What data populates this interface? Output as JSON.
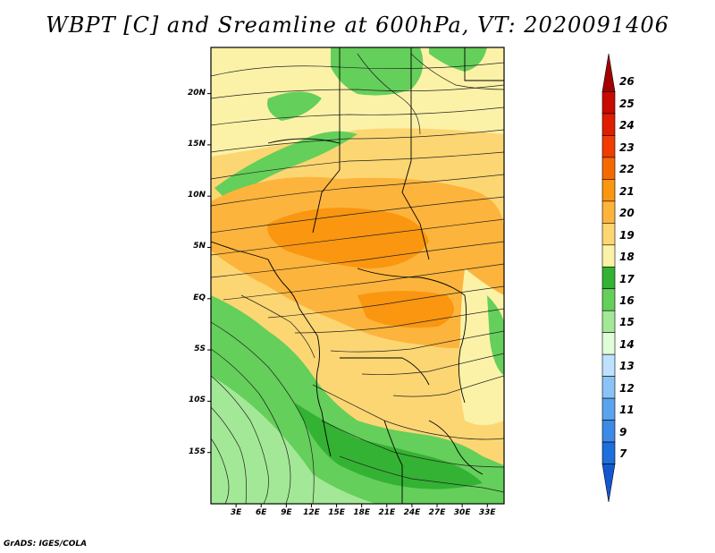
{
  "title": "WBPT [C] and Sreamline at 600hPa, VT: 2020091406",
  "credit": "GrADS: IGES/COLA",
  "lat_labels": [
    "20N",
    "15N",
    "10N",
    "5N",
    "EQ",
    "5S",
    "10S",
    "15S"
  ],
  "lon_labels": [
    "3E",
    "6E",
    "9E",
    "12E",
    "15E",
    "18E",
    "21E",
    "24E",
    "27E",
    "30E",
    "33E"
  ],
  "colorbar": {
    "labels": [
      "26",
      "25",
      "24",
      "23",
      "22",
      "21",
      "20",
      "19",
      "18",
      "17",
      "16",
      "15",
      "14",
      "13",
      "12",
      "11",
      "9",
      "7"
    ],
    "colors": [
      "#a50000",
      "#c80a00",
      "#e11d00",
      "#f03c00",
      "#f56a00",
      "#fa9610",
      "#fcb43c",
      "#fcd673",
      "#fcf2a7",
      "#34b233",
      "#64cf5a",
      "#a3e896",
      "#e0ffd9",
      "#bde1ff",
      "#8cc3f7",
      "#5aa3ef",
      "#3c8ae6",
      "#1e6edc",
      "#1358d0"
    ]
  },
  "chart_data": {
    "type": "heatmap",
    "title": "WBPT [C] and Sreamline at 600hPa, VT: 2020091406",
    "variable": "Wet-bulb potential temperature (C) with 600hPa streamlines",
    "valid_time": "2020091406",
    "lon_range": [
      0,
      35
    ],
    "lat_range": [
      -20,
      24.5
    ],
    "lat_ticks": [
      20,
      15,
      10,
      5,
      0,
      -5,
      -10,
      -15
    ],
    "lon_ticks": [
      3,
      6,
      9,
      12,
      15,
      18,
      21,
      24,
      27,
      30,
      33
    ],
    "levels": [
      7,
      9,
      11,
      12,
      13,
      14,
      15,
      16,
      17,
      18,
      19,
      20,
      21,
      22,
      23,
      24,
      25,
      26
    ]
  }
}
